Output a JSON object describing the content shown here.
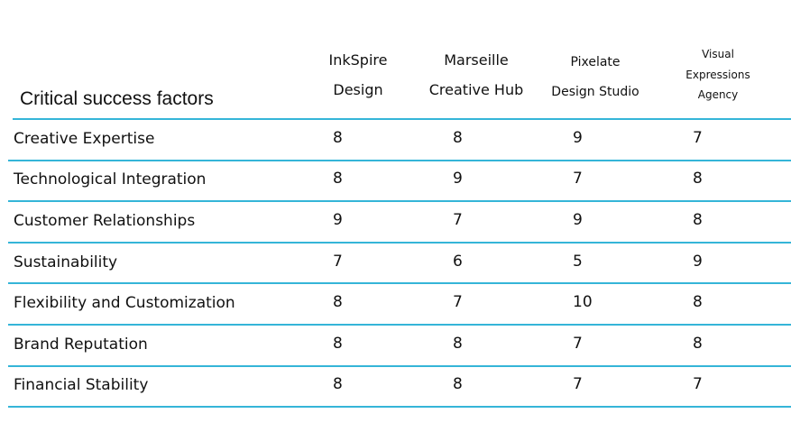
{
  "table": {
    "title": "Critical success factors",
    "columns": [
      {
        "lines": [
          "InkSpire",
          "Design"
        ]
      },
      {
        "lines": [
          "Marseille",
          "Creative Hub"
        ]
      },
      {
        "lines": [
          "Pixelate",
          "Design Studio"
        ]
      },
      {
        "lines": [
          "Visual",
          "Expressions",
          "Agency"
        ]
      }
    ],
    "rows": [
      {
        "factor": "Creative Expertise",
        "scores": [
          8,
          8,
          9,
          7
        ]
      },
      {
        "factor": "Technological Integration",
        "scores": [
          8,
          9,
          7,
          8
        ]
      },
      {
        "factor": "Customer Relationships",
        "scores": [
          9,
          7,
          9,
          8
        ]
      },
      {
        "factor": "Sustainability",
        "scores": [
          7,
          6,
          5,
          9
        ]
      },
      {
        "factor": "Flexibility and Customization",
        "scores": [
          8,
          7,
          10,
          8
        ]
      },
      {
        "factor": "Brand Reputation",
        "scores": [
          8,
          8,
          7,
          8
        ]
      },
      {
        "factor": "Financial Stability",
        "scores": [
          8,
          8,
          7,
          7
        ]
      }
    ]
  }
}
